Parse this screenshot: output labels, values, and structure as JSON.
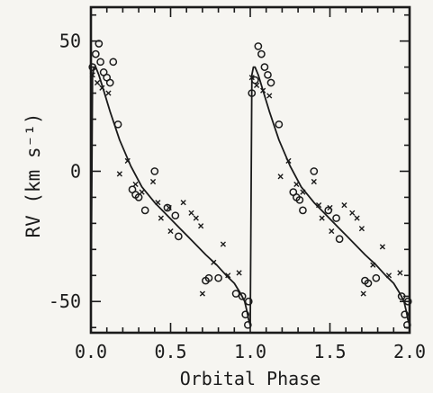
{
  "chart_data": {
    "type": "scatter",
    "xlabel": "Orbital Phase",
    "ylabel": "RV (km s⁻¹)",
    "xlim": [
      0.0,
      2.0
    ],
    "ylim": [
      -62,
      63
    ],
    "xticks": [
      0.0,
      0.5,
      1.0,
      1.5,
      2.0
    ],
    "xtick_labels": [
      "0.0",
      "0.5",
      "1.0",
      "1.5",
      "2.0"
    ],
    "yticks": [
      50,
      0,
      -50
    ],
    "ytick_labels": [
      "50",
      "0",
      "-50"
    ],
    "grid": false,
    "legend": "none",
    "colors": {
      "ink": "#1a1a1a",
      "background": "#f6f5f1"
    },
    "series": [
      {
        "marker": "circle",
        "points": [
          [
            0.01,
            40
          ],
          [
            0.03,
            45
          ],
          [
            0.05,
            49
          ],
          [
            0.06,
            42
          ],
          [
            0.08,
            38
          ],
          [
            0.1,
            36
          ],
          [
            0.12,
            34
          ],
          [
            0.14,
            42
          ],
          [
            0.17,
            18
          ],
          [
            0.26,
            -7
          ],
          [
            0.28,
            -9
          ],
          [
            0.3,
            -10
          ],
          [
            0.34,
            -15
          ],
          [
            0.4,
            0
          ],
          [
            0.48,
            -14
          ],
          [
            0.53,
            -17
          ],
          [
            0.55,
            -25
          ],
          [
            0.72,
            -42
          ],
          [
            0.74,
            -41
          ],
          [
            0.8,
            -41
          ],
          [
            0.91,
            -47
          ],
          [
            0.95,
            -48
          ],
          [
            0.97,
            -55
          ],
          [
            0.985,
            -59
          ],
          [
            0.99,
            -50
          ],
          [
            1.01,
            30
          ],
          [
            1.03,
            35
          ],
          [
            1.05,
            48
          ],
          [
            1.07,
            45
          ],
          [
            1.09,
            40
          ],
          [
            1.11,
            37
          ],
          [
            1.13,
            34
          ],
          [
            1.18,
            18
          ],
          [
            1.27,
            -8
          ],
          [
            1.29,
            -10
          ],
          [
            1.31,
            -11
          ],
          [
            1.33,
            -15
          ],
          [
            1.4,
            0
          ],
          [
            1.49,
            -15
          ],
          [
            1.54,
            -18
          ],
          [
            1.56,
            -26
          ],
          [
            1.72,
            -42
          ],
          [
            1.74,
            -43
          ],
          [
            1.79,
            -41
          ],
          [
            1.95,
            -48
          ],
          [
            1.97,
            -55
          ],
          [
            1.985,
            -59
          ],
          [
            1.99,
            -50
          ]
        ]
      },
      {
        "marker": "x",
        "points": [
          [
            0.01,
            37
          ],
          [
            0.04,
            34
          ],
          [
            0.07,
            32
          ],
          [
            0.11,
            30
          ],
          [
            0.18,
            -1
          ],
          [
            0.23,
            4
          ],
          [
            0.28,
            -5
          ],
          [
            0.32,
            -8
          ],
          [
            0.39,
            -4
          ],
          [
            0.42,
            -12
          ],
          [
            0.44,
            -18
          ],
          [
            0.49,
            -14
          ],
          [
            0.5,
            -23
          ],
          [
            0.58,
            -12
          ],
          [
            0.63,
            -16
          ],
          [
            0.66,
            -18
          ],
          [
            0.69,
            -21
          ],
          [
            0.7,
            -47
          ],
          [
            0.77,
            -35
          ],
          [
            0.83,
            -28
          ],
          [
            0.86,
            -40
          ],
          [
            0.93,
            -39
          ],
          [
            1.01,
            36
          ],
          [
            1.04,
            33
          ],
          [
            1.08,
            31
          ],
          [
            1.12,
            29
          ],
          [
            1.19,
            -2
          ],
          [
            1.24,
            4
          ],
          [
            1.29,
            -5
          ],
          [
            1.33,
            -8
          ],
          [
            1.4,
            -4
          ],
          [
            1.43,
            -13
          ],
          [
            1.45,
            -18
          ],
          [
            1.5,
            -14
          ],
          [
            1.51,
            -23
          ],
          [
            1.59,
            -13
          ],
          [
            1.64,
            -16
          ],
          [
            1.67,
            -18
          ],
          [
            1.7,
            -22
          ],
          [
            1.71,
            -47
          ],
          [
            1.77,
            -36
          ],
          [
            1.83,
            -29
          ],
          [
            1.87,
            -40
          ],
          [
            1.94,
            -39
          ]
        ]
      }
    ],
    "model_curve": {
      "x": [
        0.0,
        0.01,
        0.02,
        0.03,
        0.05,
        0.08,
        0.12,
        0.18,
        0.25,
        0.32,
        0.4,
        0.48,
        0.56,
        0.64,
        0.72,
        0.79,
        0.85,
        0.9,
        0.94,
        0.965,
        0.98,
        0.99,
        1.0,
        1.01,
        1.02,
        1.03,
        1.05,
        1.08,
        1.12,
        1.18,
        1.25,
        1.32,
        1.4,
        1.48,
        1.56,
        1.64,
        1.72,
        1.79,
        1.85,
        1.9,
        1.94,
        1.965,
        1.98,
        1.99,
        2.0
      ],
      "y": [
        -55,
        37,
        40,
        40,
        37,
        31,
        23,
        12,
        2,
        -6,
        -12,
        -17,
        -22,
        -27,
        -32,
        -36,
        -40,
        -43,
        -47,
        -50,
        -54,
        -57,
        -59,
        37,
        40,
        40,
        37,
        31,
        23,
        12,
        2,
        -6,
        -12,
        -17,
        -22,
        -27,
        -32,
        -36,
        -40,
        -43,
        -47,
        -50,
        -54,
        -57,
        -59
      ]
    },
    "reference_line": {
      "x": [
        1.96,
        2.0
      ],
      "y": [
        -48,
        -48
      ]
    }
  }
}
